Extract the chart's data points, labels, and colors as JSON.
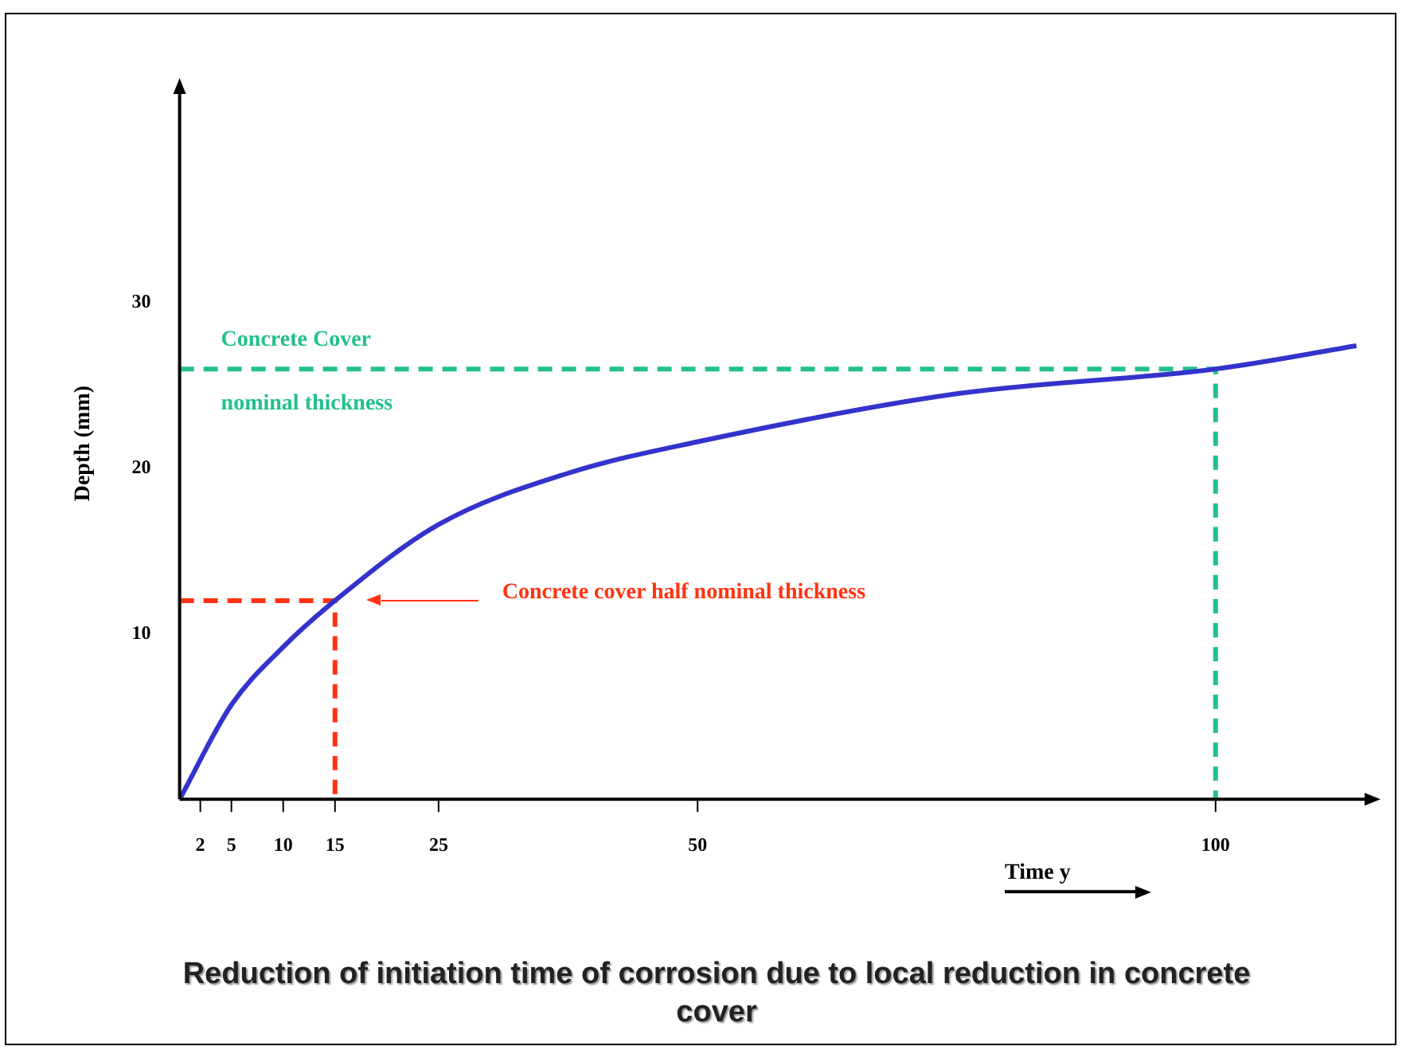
{
  "chart_data": {
    "type": "line",
    "title": "Reduction of initiation time of corrosion due to local reduction in concrete cover",
    "xlabel": "Time y",
    "ylabel": "Depth (mm)",
    "xlim": [
      0,
      115
    ],
    "xticks": [
      2,
      5,
      10,
      15,
      25,
      50,
      100
    ],
    "ylim": [
      0,
      43
    ],
    "yticks": [
      10,
      20,
      30
    ],
    "grid": false,
    "legend": false,
    "marker": "none",
    "series": [
      {
        "color": "#3333cc",
        "x": [
          0,
          5,
          10,
          15,
          25,
          37.5,
          50,
          75,
          100,
          113.6
        ],
        "values": [
          0,
          5.7,
          9.2,
          12,
          16.6,
          19.7,
          21.6,
          24.5,
          26,
          27.4
        ]
      },
      {
        "color": "#22c08f",
        "line_style": "dashed",
        "x": [
          0,
          100,
          100
        ],
        "values": [
          26,
          26,
          0
        ]
      },
      {
        "color": "#ff3311",
        "line_style": "dashed",
        "x": [
          0,
          15,
          15
        ],
        "values": [
          12,
          12,
          0
        ]
      }
    ],
    "annotations": [
      "Concrete Cover",
      "nominal thickness",
      "Concrete cover half nominal thickness"
    ]
  }
}
